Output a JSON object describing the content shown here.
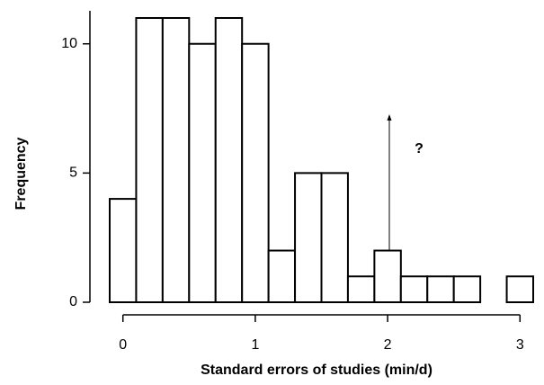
{
  "chart_data": {
    "type": "histogram",
    "x_label": "Standard errors of studies (min/d)",
    "y_label": "Frequency",
    "annotation": "?",
    "bins": [
      -0.1,
      0.1,
      0.3,
      0.5,
      0.7,
      0.9,
      1.1,
      1.3,
      1.5,
      1.7,
      1.9,
      2.1,
      2.3,
      2.5,
      2.7,
      2.9,
      3.1
    ],
    "values": [
      4,
      11,
      11,
      10,
      11,
      10,
      2,
      5,
      5,
      1,
      2,
      1,
      1,
      1,
      0,
      1
    ],
    "color": "#ffffff",
    "xlim": [
      -0.1,
      3.1
    ],
    "xticks": [
      0,
      1,
      2,
      3
    ],
    "ylim": [
      0,
      11
    ],
    "yticks": [
      0,
      5,
      10
    ]
  }
}
